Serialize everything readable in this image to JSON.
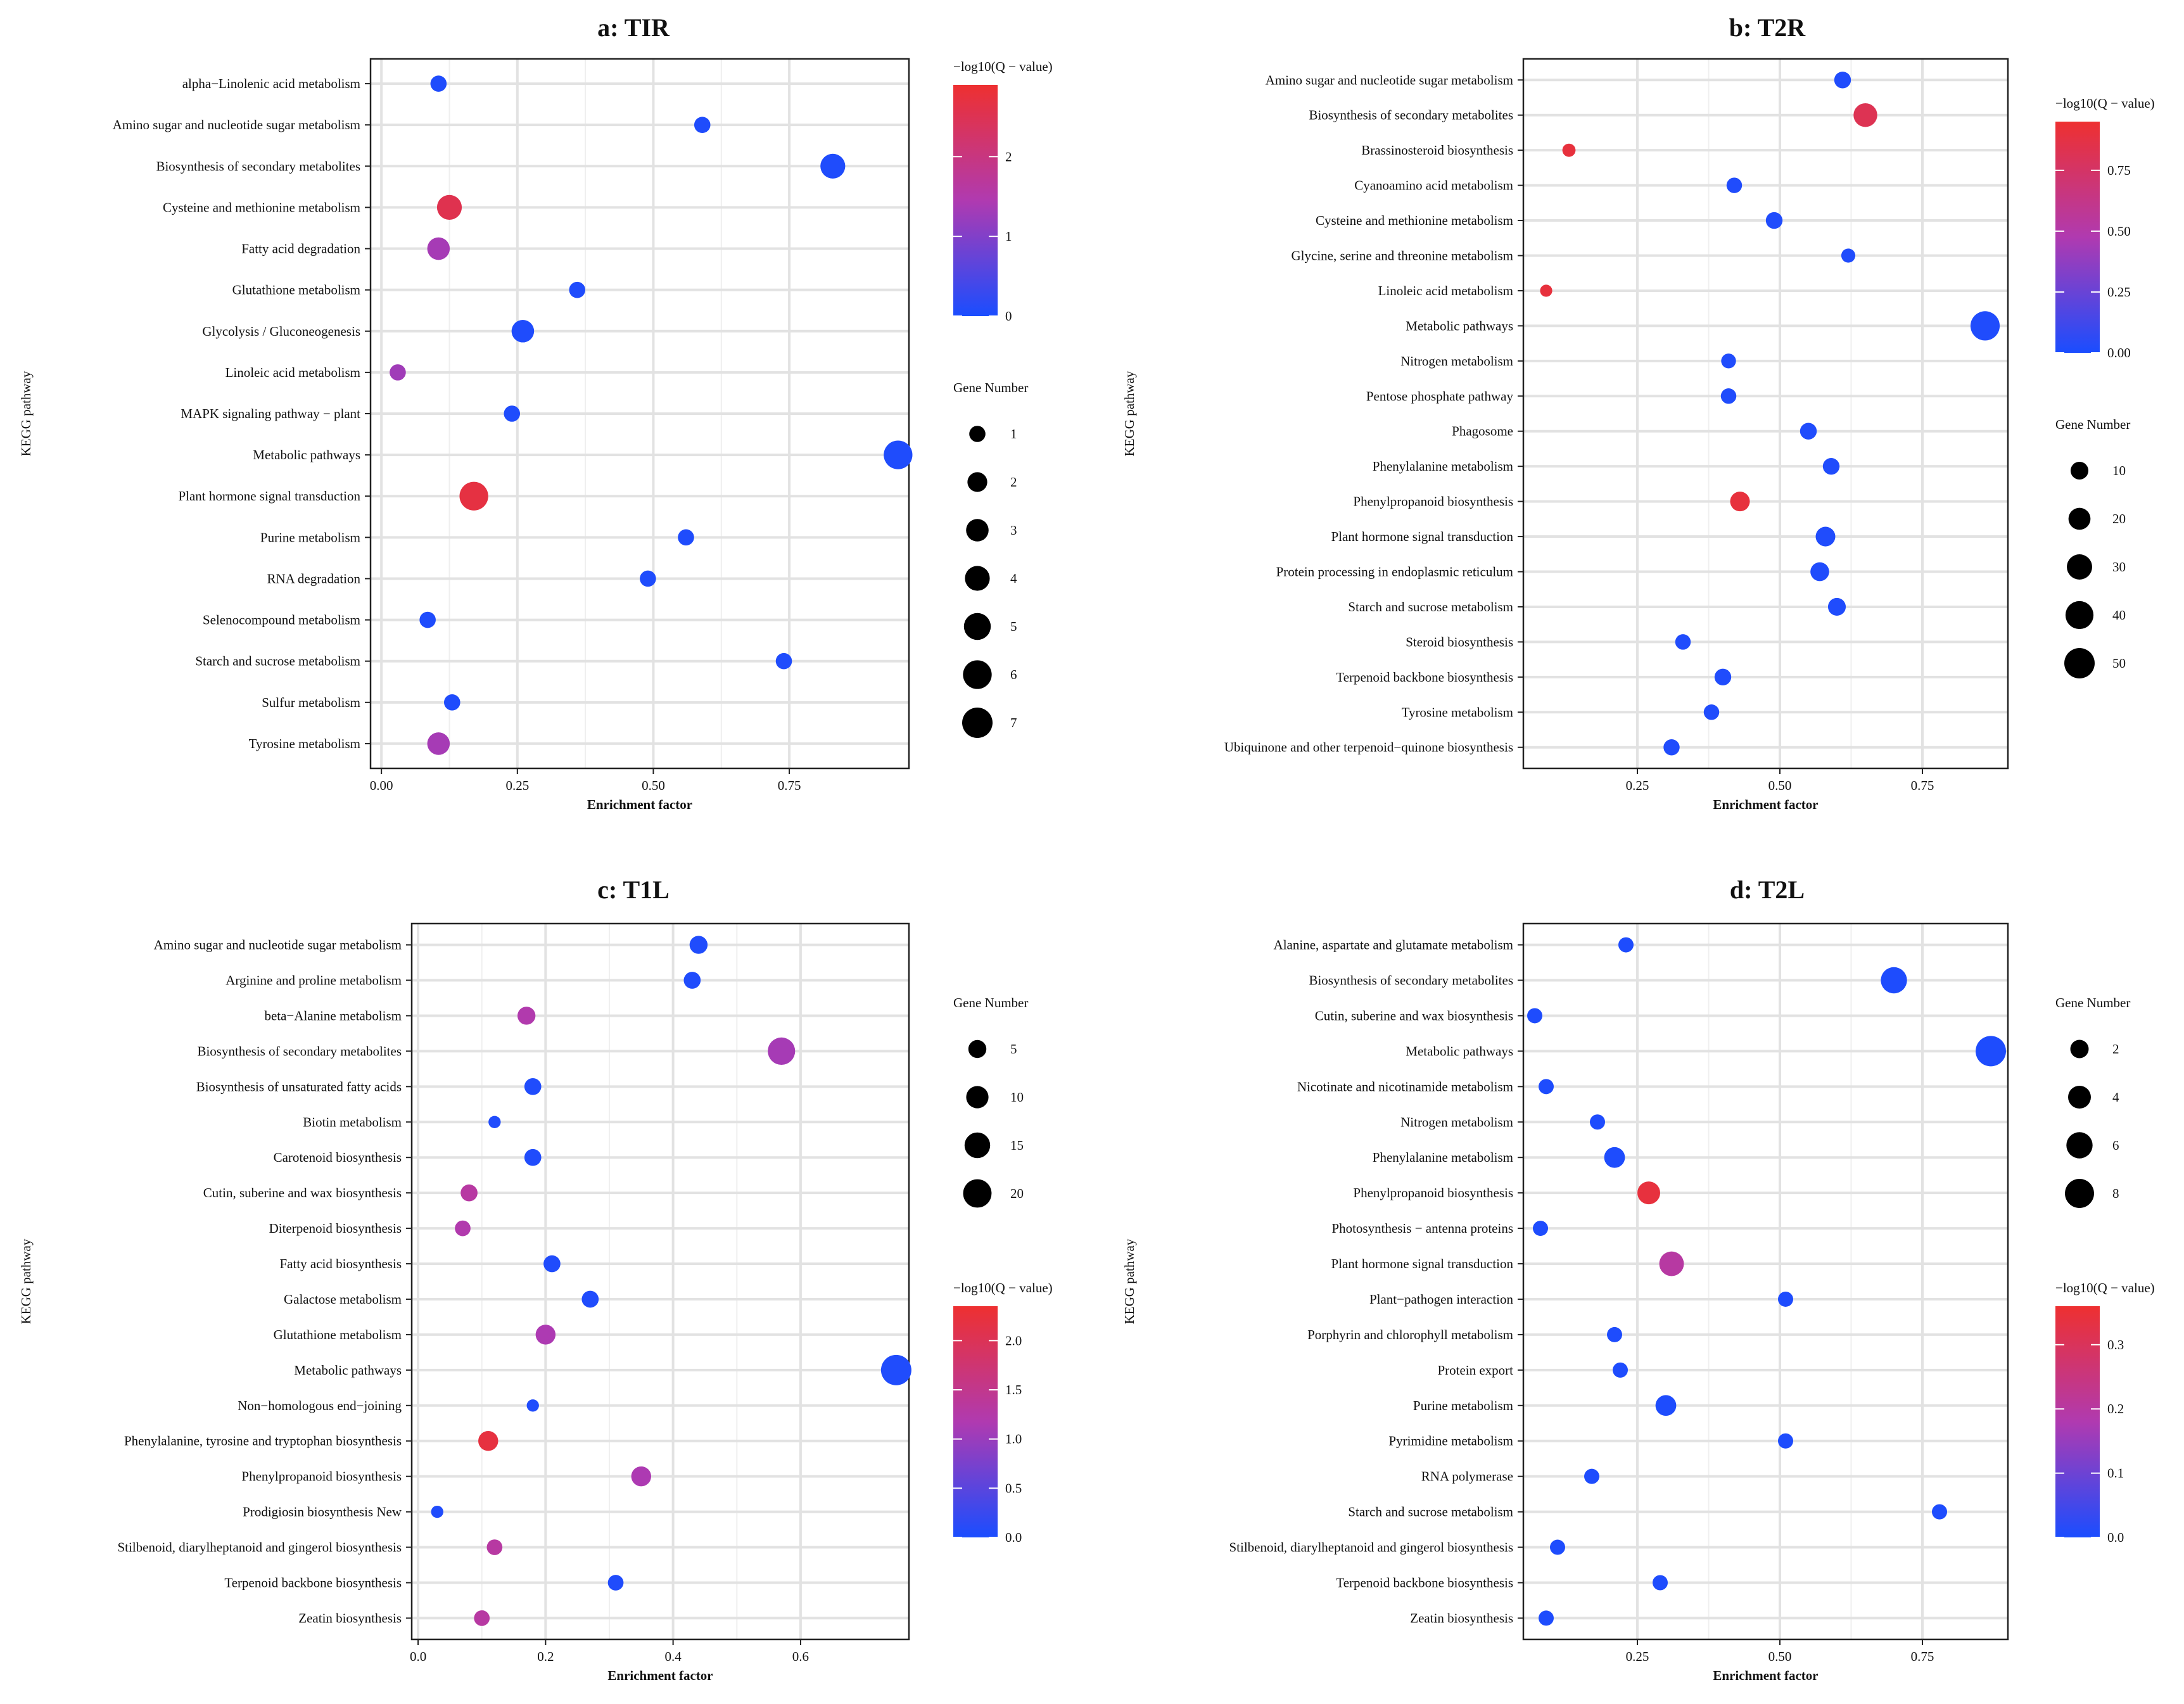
{
  "chart_data": [
    {
      "type": "scatter",
      "title": "a: TIR",
      "xlabel": "Enrichment factor",
      "ylabel": "KEGG pathway",
      "xticks": [
        0,
        0.25,
        0.5,
        0.75
      ],
      "xtick_labels": [
        "0.00",
        "0.25",
        "0.50",
        "0.75"
      ],
      "xlim": [
        -0.02,
        0.97
      ],
      "categories": [
        "alpha−Linolenic acid metabolism",
        "Amino sugar and nucleotide sugar metabolism",
        "Biosynthesis of secondary metabolites",
        "Cysteine and methionine metabolism",
        "Fatty acid degradation",
        "Glutathione metabolism",
        "Glycolysis / Gluconeogenesis",
        "Linoleic acid metabolism",
        "MAPK signaling pathway − plant",
        "Metabolic pathways",
        "Plant hormone signal transduction",
        "Purine metabolism",
        "RNA degradation",
        "Selenocompound metabolism",
        "Starch and sucrose metabolism",
        "Sulfur metabolism",
        "Tyrosine metabolism"
      ],
      "enrichment": [
        0.105,
        0.59,
        0.83,
        0.125,
        0.105,
        0.36,
        0.26,
        0.03,
        0.24,
        0.95,
        0.17,
        0.56,
        0.49,
        0.085,
        0.74,
        0.13,
        0.105
      ],
      "gene_number": [
        1,
        1,
        4,
        4,
        3,
        1,
        3,
        1,
        1,
        6,
        6,
        1,
        1,
        1,
        1,
        1,
        3
      ],
      "neg_log10_q": [
        0.05,
        0.05,
        0.05,
        2.55,
        1.35,
        0.05,
        0.05,
        1.3,
        0.05,
        0.05,
        2.7,
        0.05,
        0.05,
        0.05,
        0.05,
        0.05,
        1.35
      ],
      "color_legend": {
        "title": "−log10(Q − value)",
        "ticks": [
          0,
          1,
          2
        ],
        "labels": [
          "0",
          "1",
          "2"
        ],
        "range": [
          0,
          2.9
        ]
      },
      "size_legend": {
        "title": "Gene Number",
        "values": [
          1,
          2,
          3,
          4,
          5,
          6,
          7
        ],
        "labels": [
          "1",
          "2",
          "3",
          "4",
          "5",
          "6",
          "7"
        ],
        "range": [
          1,
          7
        ]
      },
      "legend_order": [
        "color",
        "size"
      ]
    },
    {
      "type": "scatter",
      "title": "b: T2R",
      "xlabel": "Enrichment factor",
      "ylabel": "KEGG pathway",
      "xticks": [
        0.25,
        0.5,
        0.75
      ],
      "xtick_labels": [
        "0.25",
        "0.50",
        "0.75"
      ],
      "xlim": [
        0.05,
        0.9
      ],
      "categories": [
        "Amino sugar and nucleotide sugar metabolism",
        "Biosynthesis of secondary metabolites",
        "Brassinosteroid biosynthesis",
        "Cyanoamino acid metabolism",
        "Cysteine and methionine metabolism",
        "Glycine, serine and threonine metabolism",
        "Linoleic acid metabolism",
        "Metabolic pathways",
        "Nitrogen metabolism",
        "Pentose phosphate pathway",
        "Phagosome",
        "Phenylalanine metabolism",
        "Phenylpropanoid biosynthesis",
        "Plant hormone signal transduction",
        "Protein processing in endoplasmic reticulum",
        "Starch and sucrose metabolism",
        "Steroid biosynthesis",
        "Terpenoid backbone biosynthesis",
        "Tyrosine metabolism",
        "Ubiquinone and other terpenoid−quinone biosynthesis"
      ],
      "enrichment": [
        0.61,
        0.65,
        0.13,
        0.42,
        0.49,
        0.62,
        0.09,
        0.86,
        0.41,
        0.41,
        0.55,
        0.59,
        0.43,
        0.58,
        0.57,
        0.6,
        0.33,
        0.4,
        0.38,
        0.31
      ],
      "gene_number": [
        8,
        25,
        3,
        6,
        8,
        4,
        2,
        45,
        5,
        6,
        8,
        8,
        14,
        14,
        12,
        10,
        6,
        8,
        6,
        7
      ],
      "neg_log10_q": [
        0.02,
        0.82,
        0.9,
        0.02,
        0.02,
        0.02,
        0.9,
        0.02,
        0.02,
        0.02,
        0.02,
        0.02,
        0.9,
        0.02,
        0.02,
        0.02,
        0.02,
        0.02,
        0.02,
        0.02
      ],
      "color_legend": {
        "title": "−log10(Q − value)",
        "ticks": [
          0,
          0.25,
          0.5,
          0.75
        ],
        "labels": [
          "0.00",
          "0.25",
          "0.50",
          "0.75"
        ],
        "range": [
          0,
          0.95
        ]
      },
      "size_legend": {
        "title": "Gene Number",
        "values": [
          10,
          20,
          30,
          40,
          50
        ],
        "labels": [
          "10",
          "20",
          "30",
          "40",
          "50"
        ],
        "range": [
          1,
          50
        ]
      },
      "legend_order": [
        "color",
        "size"
      ]
    },
    {
      "type": "scatter",
      "title": "c: T1L",
      "xlabel": "Enrichment factor",
      "ylabel": "KEGG pathway",
      "xticks": [
        0,
        0.2,
        0.4,
        0.6
      ],
      "xtick_labels": [
        "0.0",
        "0.2",
        "0.4",
        "0.6"
      ],
      "xlim": [
        -0.01,
        0.77
      ],
      "categories": [
        "Amino sugar and nucleotide sugar metabolism",
        "Arginine and proline metabolism",
        "beta−Alanine metabolism",
        "Biosynthesis of secondary metabolites",
        "Biosynthesis of unsaturated fatty acids",
        "Biotin metabolism",
        "Carotenoid biosynthesis",
        "Cutin, suberine and wax biosynthesis",
        "Diterpenoid biosynthesis",
        "Fatty acid biosynthesis",
        "Galactose metabolism",
        "Glutathione metabolism",
        "Metabolic pathways",
        "Non−homologous end−joining",
        "Phenylalanine, tyrosine and tryptophan biosynthesis",
        "Phenylpropanoid biosynthesis",
        "Prodigiosin biosynthesis New",
        "Stilbenoid, diarylheptanoid and gingerol biosynthesis",
        "Terpenoid backbone biosynthesis",
        "Zeatin biosynthesis"
      ],
      "enrichment": [
        0.44,
        0.43,
        0.17,
        0.57,
        0.18,
        0.12,
        0.18,
        0.08,
        0.07,
        0.21,
        0.27,
        0.2,
        0.75,
        0.18,
        0.11,
        0.35,
        0.03,
        0.12,
        0.31,
        0.1
      ],
      "gene_number": [
        5,
        4,
        5,
        18,
        4,
        1,
        4,
        4,
        3,
        4,
        4,
        7,
        24,
        1,
        7,
        7,
        1,
        3,
        3,
        3
      ],
      "neg_log10_q": [
        0.05,
        0.05,
        1.2,
        1.1,
        0.05,
        0.05,
        0.05,
        1.3,
        1.2,
        0.05,
        0.05,
        1.15,
        0.05,
        0.05,
        2.2,
        1.15,
        0.05,
        1.3,
        0.05,
        1.3
      ],
      "color_legend": {
        "title": "−log10(Q − value)",
        "ticks": [
          0,
          0.5,
          1,
          1.5,
          2
        ],
        "labels": [
          "0.0",
          "0.5",
          "1.0",
          "1.5",
          "2.0"
        ],
        "range": [
          0,
          2.35
        ]
      },
      "size_legend": {
        "title": "Gene Number",
        "values": [
          5,
          10,
          15,
          20
        ],
        "labels": [
          "5",
          "10",
          "15",
          "20"
        ],
        "range": [
          1,
          24
        ]
      },
      "legend_order": [
        "size",
        "color"
      ]
    },
    {
      "type": "scatter",
      "title": "d: T2L",
      "xlabel": "Enrichment factor",
      "ylabel": "KEGG pathway",
      "xticks": [
        0.25,
        0.5,
        0.75
      ],
      "xtick_labels": [
        "0.25",
        "0.50",
        "0.75"
      ],
      "xlim": [
        0.05,
        0.9
      ],
      "categories": [
        "Alanine, aspartate and glutamate metabolism",
        "Biosynthesis of secondary metabolites",
        "Cutin, suberine and wax biosynthesis",
        "Metabolic pathways",
        "Nicotinate and nicotinamide metabolism",
        "Nitrogen metabolism",
        "Phenylalanine metabolism",
        "Phenylpropanoid biosynthesis",
        "Photosynthesis − antenna proteins",
        "Plant hormone signal transduction",
        "Plant−pathogen interaction",
        "Porphyrin and chlorophyll metabolism",
        "Protein export",
        "Purine metabolism",
        "Pyrimidine metabolism",
        "RNA polymerase",
        "Starch and sucrose metabolism",
        "Stilbenoid, diarylheptanoid and gingerol biosynthesis",
        "Terpenoid backbone biosynthesis",
        "Zeatin biosynthesis"
      ],
      "enrichment": [
        0.23,
        0.7,
        0.07,
        0.87,
        0.09,
        0.18,
        0.21,
        0.27,
        0.08,
        0.31,
        0.51,
        0.21,
        0.22,
        0.3,
        0.51,
        0.17,
        0.78,
        0.11,
        0.29,
        0.09
      ],
      "gene_number": [
        1,
        6,
        1,
        9,
        1,
        1,
        3,
        4,
        1,
        5,
        1,
        1,
        1,
        3,
        1,
        1,
        1,
        1,
        1,
        1
      ],
      "neg_log10_q": [
        0.005,
        0.005,
        0.005,
        0.005,
        0.005,
        0.005,
        0.005,
        0.34,
        0.005,
        0.2,
        0.005,
        0.005,
        0.005,
        0.005,
        0.005,
        0.005,
        0.005,
        0.005,
        0.005,
        0.005
      ],
      "color_legend": {
        "title": "−log10(Q − value)",
        "ticks": [
          0,
          0.1,
          0.2,
          0.3
        ],
        "labels": [
          "0.0",
          "0.1",
          "0.2",
          "0.3"
        ],
        "range": [
          0,
          0.36
        ]
      },
      "size_legend": {
        "title": "Gene Number",
        "values": [
          2,
          4,
          6,
          8
        ],
        "labels": [
          "2",
          "4",
          "6",
          "8"
        ],
        "range": [
          1,
          9
        ]
      },
      "legend_order": [
        "size",
        "color"
      ]
    }
  ],
  "colors": {
    "low": "#1a4dff",
    "mid": "#b03ab0",
    "high": "#ee3030",
    "grid": "#e2e2e2",
    "legend_dot": "#000000"
  }
}
